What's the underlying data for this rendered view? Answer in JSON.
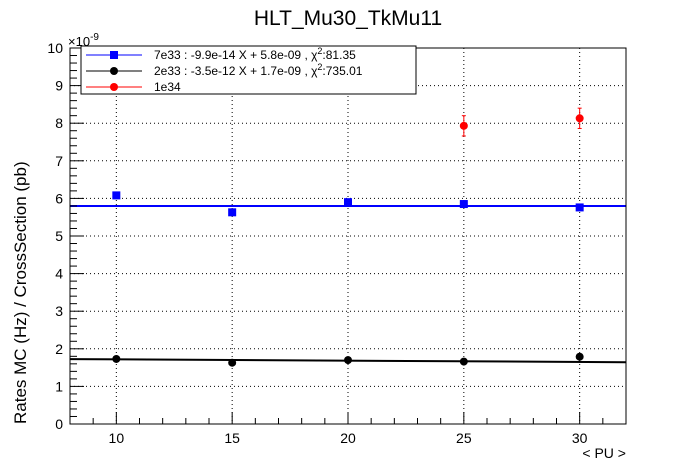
{
  "chart_data": {
    "type": "scatter",
    "title": "HLT_Mu30_TkMu11",
    "xlabel": "< PU >",
    "ylabel": "Rates MC (Hz) / CrossSection (pb)",
    "y_exponent": "×10",
    "y_exponent_power": "-9",
    "xlim": [
      8,
      32
    ],
    "ylim": [
      0,
      10
    ],
    "x_ticks": [
      "10",
      "15",
      "20",
      "25",
      "30"
    ],
    "y_ticks": [
      "0",
      "1",
      "2",
      "3",
      "4",
      "5",
      "6",
      "7",
      "8",
      "9",
      "10"
    ],
    "grid": true,
    "legend_position": "top-left",
    "series": [
      {
        "name": "7e33 : -9.9e-14 X + 5.8e-09 , χ",
        "name_sup": "2",
        "name_tail": ":81.35",
        "color": "#0000ff",
        "marker": "square",
        "x": [
          10,
          15,
          20,
          25,
          30
        ],
        "y": [
          6.08,
          5.63,
          5.9,
          5.85,
          5.76
        ],
        "err": [
          0.05,
          0.05,
          0.05,
          0.05,
          0.05
        ],
        "fit": {
          "slope": -9.9e-05,
          "intercept": 5.8
        }
      },
      {
        "name": "2e33 : -3.5e-12 X + 1.7e-09 , χ",
        "name_sup": "2",
        "name_tail": ":735.01",
        "color": "#000000",
        "marker": "circle",
        "x": [
          10,
          15,
          20,
          25,
          30
        ],
        "y": [
          1.73,
          1.63,
          1.7,
          1.66,
          1.79
        ],
        "err": [
          0.02,
          0.02,
          0.02,
          0.02,
          0.02
        ],
        "fit": {
          "slope": -0.0035,
          "intercept": 1.755
        }
      },
      {
        "name": "1e34",
        "name_sup": "",
        "name_tail": "",
        "color": "#ff0000",
        "marker": "circle",
        "x": [
          25,
          30
        ],
        "y": [
          7.93,
          8.13
        ],
        "err": [
          0.27,
          0.27
        ]
      }
    ]
  }
}
